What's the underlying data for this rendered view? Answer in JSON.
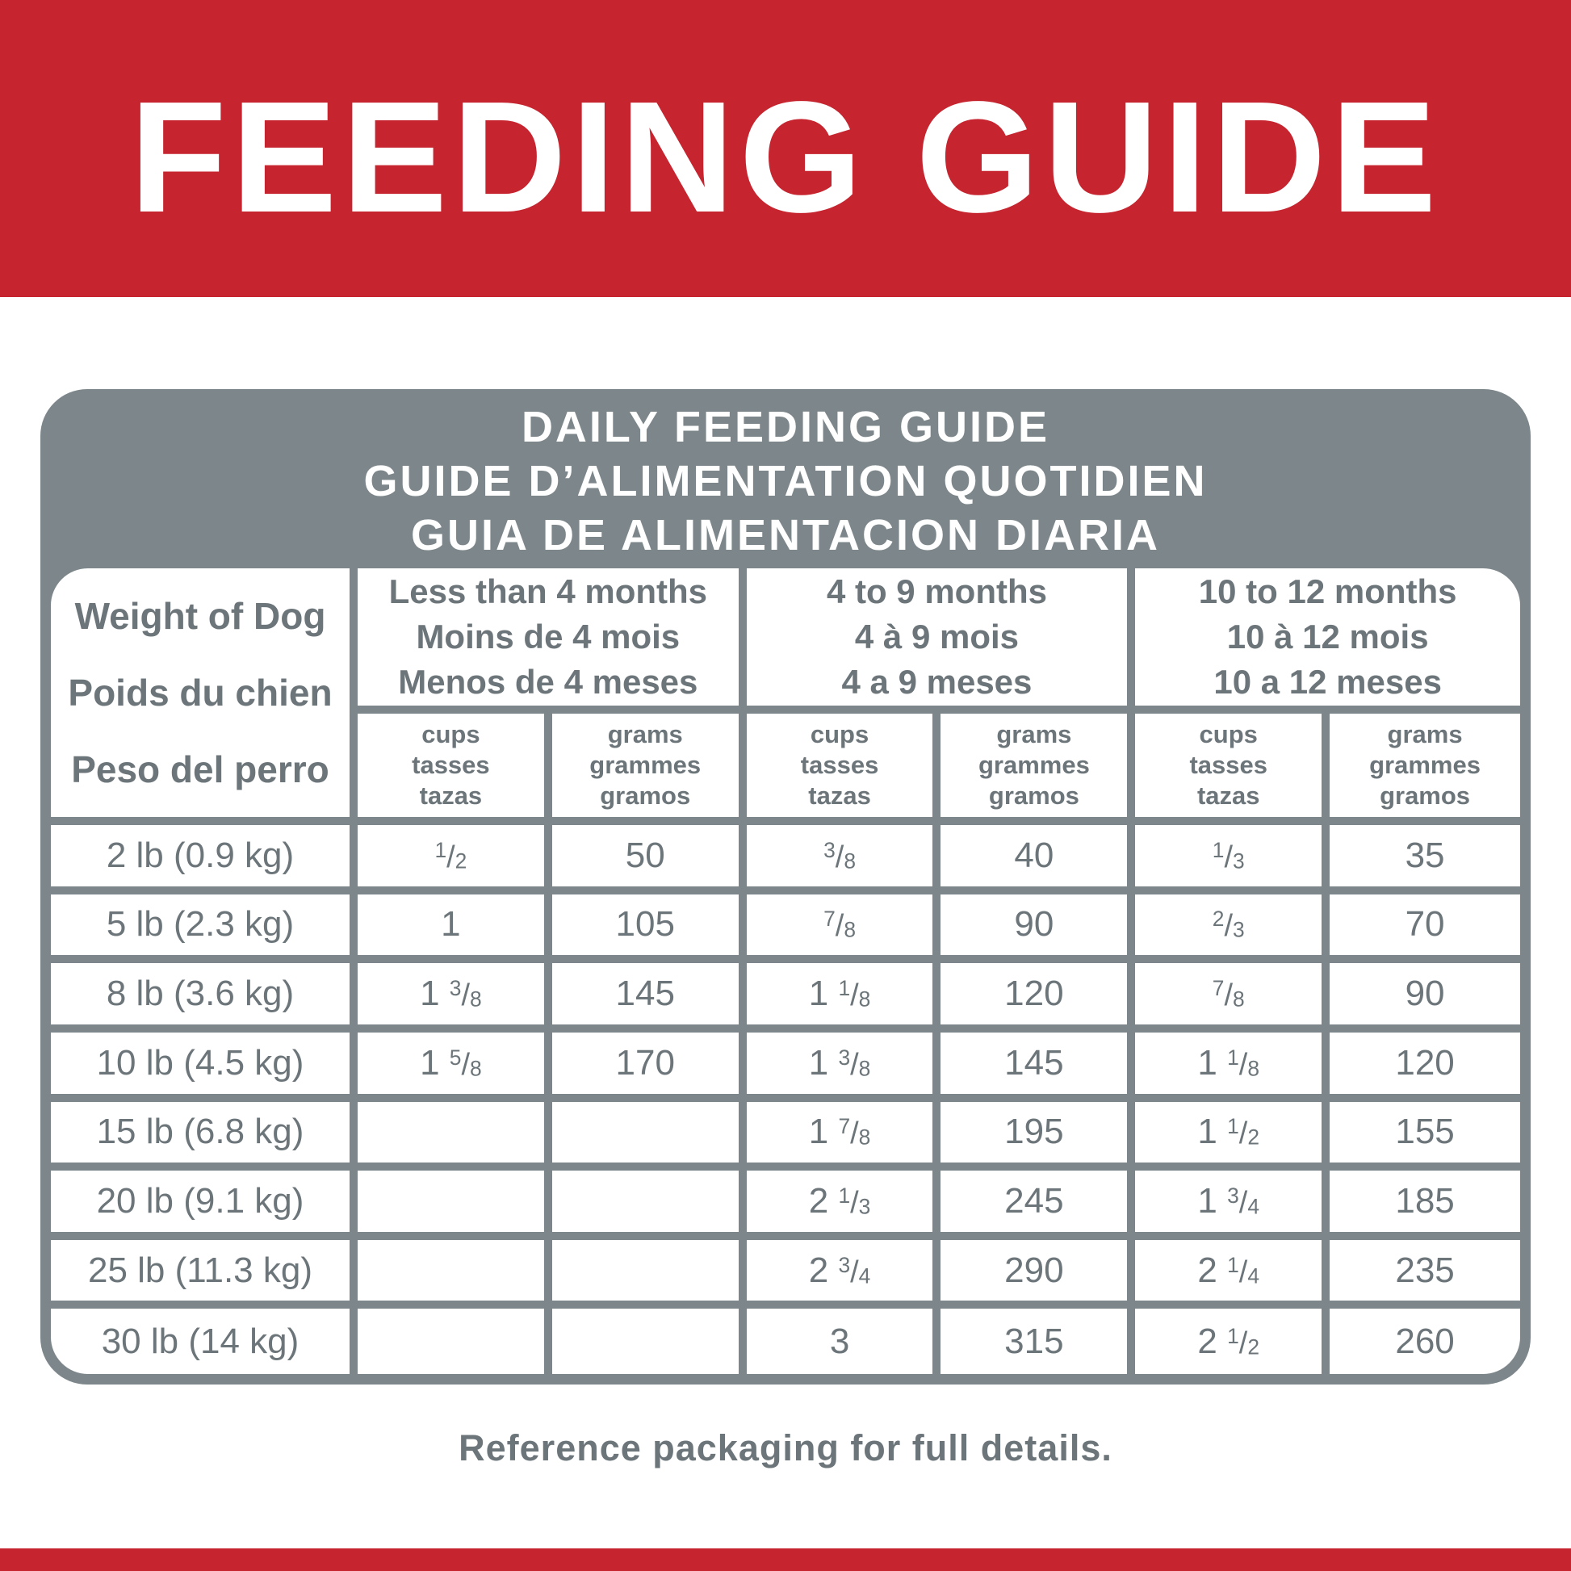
{
  "colors": {
    "red": "#C6242E",
    "panel_gray": "#7D878B",
    "text_gray": "#6C757A"
  },
  "top_banner": {
    "title": "FEEDING GUIDE"
  },
  "panel": {
    "title_lines": [
      "DAILY FEEDING GUIDE",
      "GUIDE D’ALIMENTATION QUOTIDIEN",
      "GUIA DE ALIMENTACION DIARIA"
    ]
  },
  "table": {
    "weight_header": {
      "lines": [
        "Weight of Dog",
        "Poids du chien",
        "Peso del perro"
      ]
    },
    "age_groups": [
      {
        "lines": [
          "Less than 4 months",
          "Moins de 4 mois",
          "Menos de 4 meses"
        ]
      },
      {
        "lines": [
          "4 to 9 months",
          "4 à 9 mois",
          "4 a 9 meses"
        ]
      },
      {
        "lines": [
          "10 to 12 months",
          "10 à 12 mois",
          "10 a 12 meses"
        ]
      }
    ],
    "unit_headers": {
      "cups": {
        "lines": [
          "cups",
          "tasses",
          "tazas"
        ]
      },
      "grams": {
        "lines": [
          "grams",
          "grammes",
          "gramos"
        ]
      }
    },
    "rows": [
      {
        "weight": "2 lb (0.9 kg)",
        "values": [
          "1/2",
          "50",
          "3/8",
          "40",
          "1/3",
          "35"
        ]
      },
      {
        "weight": "5 lb (2.3 kg)",
        "values": [
          "1",
          "105",
          "7/8",
          "90",
          "2/3",
          "70"
        ]
      },
      {
        "weight": "8 lb (3.6 kg)",
        "values": [
          "1 3/8",
          "145",
          "1 1/8",
          "120",
          "7/8",
          "90"
        ]
      },
      {
        "weight": "10 lb (4.5 kg)",
        "values": [
          "1 5/8",
          "170",
          "1 3/8",
          "145",
          "1 1/8",
          "120"
        ]
      },
      {
        "weight": "15 lb (6.8 kg)",
        "values": [
          "",
          "",
          "1 7/8",
          "195",
          "1 1/2",
          "155"
        ]
      },
      {
        "weight": "20 lb (9.1 kg)",
        "values": [
          "",
          "",
          "2 1/3",
          "245",
          "1 3/4",
          "185"
        ]
      },
      {
        "weight": "25 lb (11.3 kg)",
        "values": [
          "",
          "",
          "2 3/4",
          "290",
          "2 1/4",
          "235"
        ]
      },
      {
        "weight": "30 lb (14 kg)",
        "values": [
          "",
          "",
          "3",
          "315",
          "2 1/2",
          "260"
        ]
      }
    ]
  },
  "footer": {
    "note": "Reference packaging for full details."
  }
}
